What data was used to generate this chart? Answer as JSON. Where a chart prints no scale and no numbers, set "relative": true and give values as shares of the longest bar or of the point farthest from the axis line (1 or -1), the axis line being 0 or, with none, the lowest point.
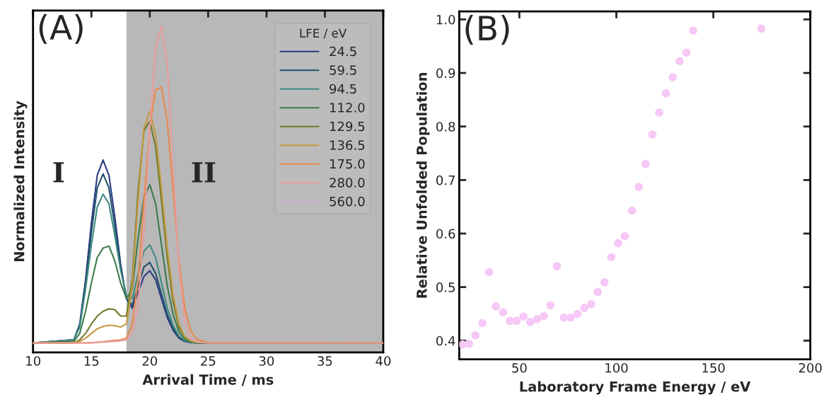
{
  "chart_data": [
    {
      "type": "line",
      "relative": true,
      "xlabel": "Arrival Time / ms",
      "ylabel": "Normalized Intensity",
      "legend_title": "LFE / eV",
      "legend": "top right",
      "tick_labels": "x",
      "grid": false,
      "xlim": [
        10,
        40
      ],
      "xticks": [
        10,
        15,
        20,
        25,
        30,
        35,
        40
      ],
      "x": [
        10,
        13.5,
        14,
        14.5,
        15,
        15.5,
        16,
        16.5,
        17,
        17.5,
        18,
        18.5,
        19,
        19.5,
        20,
        20.5,
        21,
        21.5,
        22,
        22.5,
        23,
        23.5,
        24,
        25,
        40
      ],
      "bands": [
        {
          "axis": "x",
          "from": 18,
          "to": 40,
          "color": "#b8b8b8"
        }
      ],
      "annotations": [
        "(A)",
        "I",
        "II"
      ],
      "series": [
        {
          "name": "24.5",
          "color": "#2b3a80",
          "values": [
            0,
            0.01,
            0.06,
            0.2,
            0.38,
            0.53,
            0.578,
            0.53,
            0.4,
            0.25,
            0.14,
            0.11,
            0.16,
            0.21,
            0.228,
            0.2,
            0.14,
            0.08,
            0.04,
            0.015,
            0.005,
            0.002,
            0,
            0,
            0
          ]
        },
        {
          "name": "59.5",
          "color": "#214f6e",
          "values": [
            0,
            0.01,
            0.055,
            0.19,
            0.35,
            0.49,
            0.534,
            0.49,
            0.37,
            0.24,
            0.14,
            0.12,
            0.18,
            0.24,
            0.254,
            0.22,
            0.155,
            0.09,
            0.045,
            0.018,
            0.006,
            0.002,
            0,
            0,
            0
          ]
        },
        {
          "name": "94.5",
          "color": "#3f8a80",
          "values": [
            0,
            0.01,
            0.05,
            0.17,
            0.31,
            0.43,
            0.47,
            0.44,
            0.34,
            0.23,
            0.15,
            0.14,
            0.22,
            0.29,
            0.31,
            0.27,
            0.19,
            0.11,
            0.055,
            0.022,
            0.008,
            0.003,
            0,
            0,
            0
          ]
        },
        {
          "name": "112.0",
          "color": "#3d7a4a",
          "values": [
            0,
            0.005,
            0.03,
            0.1,
            0.19,
            0.27,
            0.3,
            0.306,
            0.26,
            0.19,
            0.14,
            0.17,
            0.33,
            0.46,
            0.5,
            0.44,
            0.31,
            0.18,
            0.09,
            0.035,
            0.012,
            0.004,
            0.001,
            0,
            0
          ]
        },
        {
          "name": "129.5",
          "color": "#6f7a2a",
          "values": [
            0,
            0,
            0.01,
            0.03,
            0.06,
            0.085,
            0.1,
            0.108,
            0.105,
            0.085,
            0.085,
            0.2,
            0.48,
            0.67,
            0.701,
            0.62,
            0.45,
            0.27,
            0.13,
            0.05,
            0.018,
            0.006,
            0.002,
            0,
            0
          ]
        },
        {
          "name": "136.5",
          "color": "#c49a40",
          "values": [
            0,
            0,
            0.005,
            0.015,
            0.03,
            0.045,
            0.052,
            0.056,
            0.055,
            0.05,
            0.06,
            0.18,
            0.45,
            0.68,
            0.731,
            0.66,
            0.49,
            0.3,
            0.15,
            0.06,
            0.02,
            0.007,
            0.002,
            0,
            0
          ]
        },
        {
          "name": "175.0",
          "color": "#e8894c",
          "values": [
            0,
            0,
            0,
            0,
            0,
            0.002,
            0.004,
            0.006,
            0.008,
            0.01,
            0.015,
            0.06,
            0.2,
            0.45,
            0.68,
            0.8,
            0.808,
            0.7,
            0.48,
            0.26,
            0.11,
            0.04,
            0.012,
            0.001,
            0
          ]
        },
        {
          "name": "280.0",
          "color": "#e89c9c",
          "values": [
            0,
            0,
            0,
            0,
            0.001,
            0.002,
            0.003,
            0.004,
            0.005,
            0.007,
            0.01,
            0.03,
            0.12,
            0.35,
            0.68,
            0.93,
            1.0,
            0.88,
            0.55,
            0.24,
            0.07,
            0.015,
            0.003,
            0,
            0
          ]
        },
        {
          "name": "560.0",
          "color": "#d8aad8",
          "values": [
            null,
            null,
            null,
            null,
            null,
            null,
            null,
            null,
            null,
            null,
            null,
            null,
            null,
            null,
            null,
            null,
            null,
            null,
            null,
            null,
            null,
            null,
            null,
            null,
            null
          ]
        }
      ]
    },
    {
      "type": "scatter",
      "xlabel": "Laboratory Frame Energy / eV",
      "ylabel": "Relative Unfolded Population",
      "marker": "circle",
      "grid": false,
      "legend": false,
      "xlim": [
        19,
        200
      ],
      "xticks": [
        50,
        100,
        150,
        200
      ],
      "ylim": [
        0.365,
        1.015
      ],
      "yticks": [
        0.4,
        0.5,
        0.6,
        0.7,
        0.8,
        0.9,
        {
          "value": 1.0,
          "label": "1.0"
        }
      ],
      "annotations": [
        "(B)"
      ],
      "x": [
        20.8,
        24.0,
        27.3,
        30.9,
        34.4,
        37.9,
        41.6,
        45.1,
        48.6,
        52.1,
        55.6,
        59.1,
        62.6,
        66.0,
        69.4,
        73.0,
        76.5,
        80.0,
        83.5,
        87.0,
        90.4,
        93.9,
        97.4,
        100.9,
        104.4,
        108.1,
        111.6,
        115.1,
        118.6,
        122.1,
        125.6,
        129.1,
        132.6,
        136.1,
        139.6,
        174.7
      ],
      "series": [
        {
          "color": "#f6c8f6",
          "values": [
            0.393,
            0.394,
            0.41,
            0.433,
            0.528,
            0.464,
            0.453,
            0.437,
            0.437,
            0.445,
            0.435,
            0.44,
            0.446,
            0.466,
            0.539,
            0.443,
            0.443,
            0.45,
            0.461,
            0.468,
            0.491,
            0.509,
            0.556,
            0.582,
            0.595,
            0.643,
            0.687,
            0.73,
            0.785,
            0.826,
            0.862,
            0.892,
            0.922,
            0.938,
            0.979,
            0.983
          ]
        }
      ]
    }
  ]
}
